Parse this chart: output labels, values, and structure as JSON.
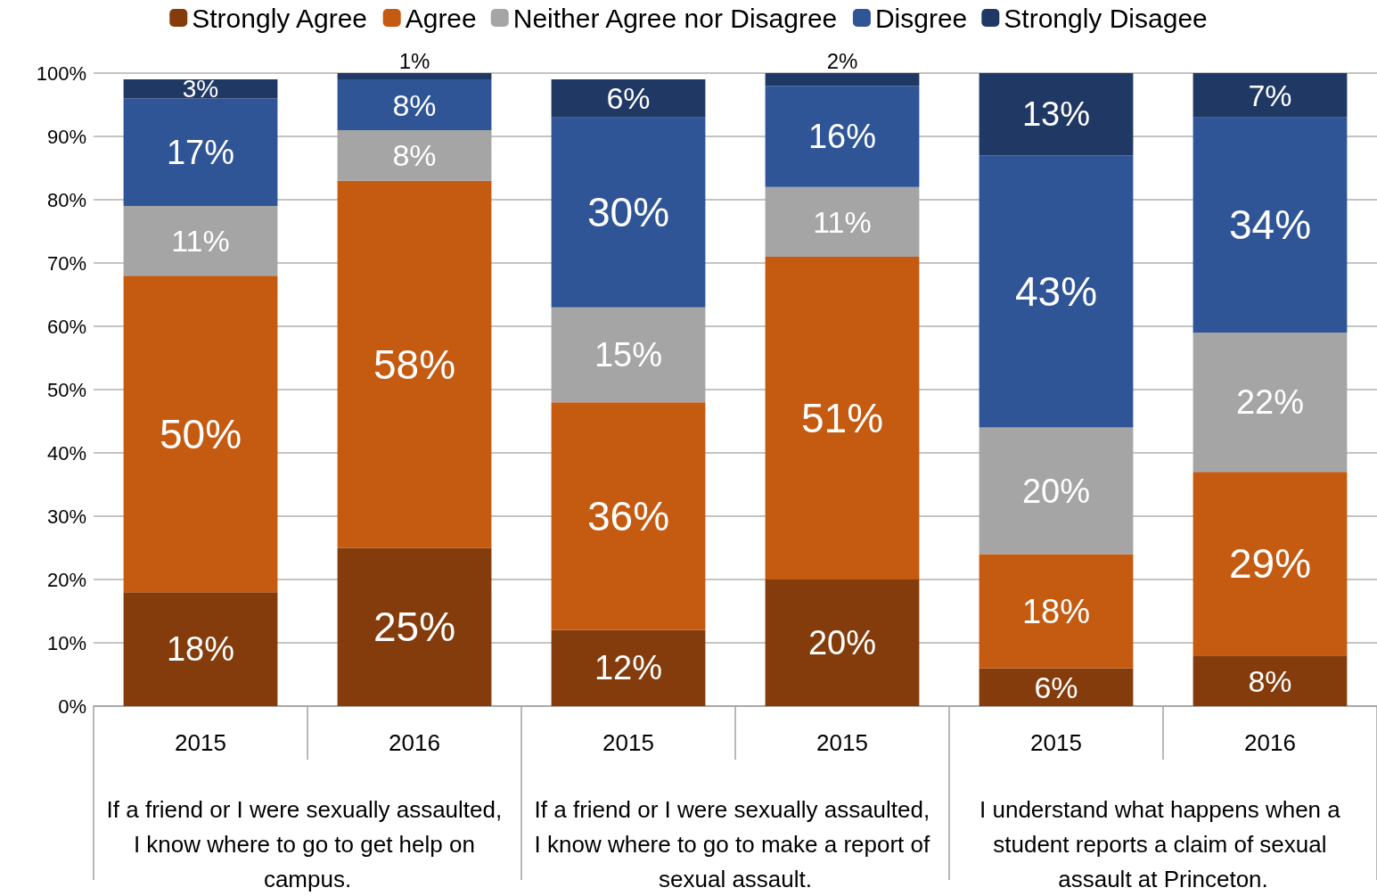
{
  "chart_data": {
    "type": "bar",
    "stacked": true,
    "categories": [
      "2015",
      "2016",
      "2015",
      "2015",
      "2015",
      "2016"
    ],
    "series": [
      {
        "name": "Strongly Agree",
        "color": "#843c0c",
        "values": [
          18,
          25,
          12,
          20,
          6,
          8
        ],
        "value_labels": [
          "18%",
          "25%",
          "12%",
          "20%",
          "6%",
          "8%"
        ]
      },
      {
        "name": "Agree",
        "color": "#c55a11",
        "values": [
          50,
          58,
          36,
          51,
          18,
          29
        ],
        "value_labels": [
          "50%",
          "58%",
          "36%",
          "51%",
          "18%",
          "29%"
        ]
      },
      {
        "name": "Neither Agree nor Disagree",
        "color": "#a5a5a5",
        "values": [
          11,
          8,
          15,
          11,
          20,
          22
        ],
        "value_labels": [
          "11%",
          "8%",
          "15%",
          "11%",
          "20%",
          "22%"
        ]
      },
      {
        "name": "Disgree",
        "color": "#2f5597",
        "values": [
          17,
          8,
          30,
          16,
          43,
          34
        ],
        "value_labels": [
          "17%",
          "8%",
          "30%",
          "16%",
          "43%",
          "34%"
        ]
      },
      {
        "name": "Strongly Disagee",
        "color": "#203864",
        "values": [
          3,
          1,
          6,
          2,
          13,
          7
        ],
        "value_labels": [
          "3%",
          "1%",
          "6%",
          "2%",
          "13%",
          "7%"
        ]
      }
    ],
    "ylim": [
      0,
      100
    ],
    "yticks": [
      {
        "value": 0,
        "label": "0%"
      },
      {
        "value": 10,
        "label": "10%"
      },
      {
        "value": 20,
        "label": "20%"
      },
      {
        "value": 30,
        "label": "30%"
      },
      {
        "value": 40,
        "label": "40%"
      },
      {
        "value": 50,
        "label": "50%"
      },
      {
        "value": 60,
        "label": "60%"
      },
      {
        "value": 70,
        "label": "70%"
      },
      {
        "value": 80,
        "label": "80%"
      },
      {
        "value": 90,
        "label": "90%"
      },
      {
        "value": 100,
        "label": "100%"
      }
    ],
    "grid": "y",
    "legend": "top",
    "annotations": [
      "If a friend or I were sexually assaulted, I know where to go to get help on campus.",
      "If a friend or I were sexually assaulted, I know where to go to make a report of sexual assault.",
      "I understand what happens when a student reports a claim of sexual assault at Princeton."
    ]
  }
}
